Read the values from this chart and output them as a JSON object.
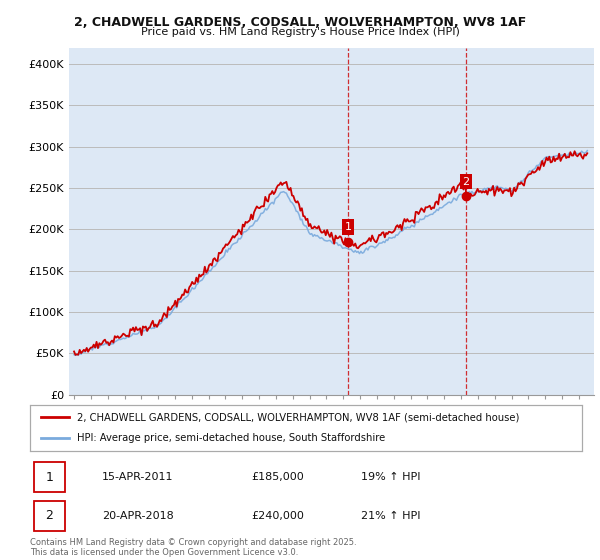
{
  "title_line1": "2, CHADWELL GARDENS, CODSALL, WOLVERHAMPTON, WV8 1AF",
  "title_line2": "Price paid vs. HM Land Registry's House Price Index (HPI)",
  "ylim": [
    0,
    420000
  ],
  "yticks": [
    0,
    50000,
    100000,
    150000,
    200000,
    250000,
    300000,
    350000,
    400000
  ],
  "ytick_labels": [
    "£0",
    "£50K",
    "£100K",
    "£150K",
    "£200K",
    "£250K",
    "£300K",
    "£350K",
    "£400K"
  ],
  "sale1_year": 2011.29,
  "sale1_price": 185000,
  "sale1_date": "15-APR-2011",
  "sale1_pct": "19%",
  "sale2_year": 2018.29,
  "sale2_price": 240000,
  "sale2_date": "20-APR-2018",
  "sale2_pct": "21%",
  "red_color": "#cc0000",
  "blue_color": "#7aaadd",
  "vline_color": "#cc0000",
  "bg_color": "#dde8f5",
  "grid_color": "#bbbbbb",
  "fig_bg": "#ffffff",
  "legend_label_red": "2, CHADWELL GARDENS, CODSALL, WOLVERHAMPTON, WV8 1AF (semi-detached house)",
  "legend_label_blue": "HPI: Average price, semi-detached house, South Staffordshire",
  "footer": "Contains HM Land Registry data © Crown copyright and database right 2025.\nThis data is licensed under the Open Government Licence v3.0."
}
